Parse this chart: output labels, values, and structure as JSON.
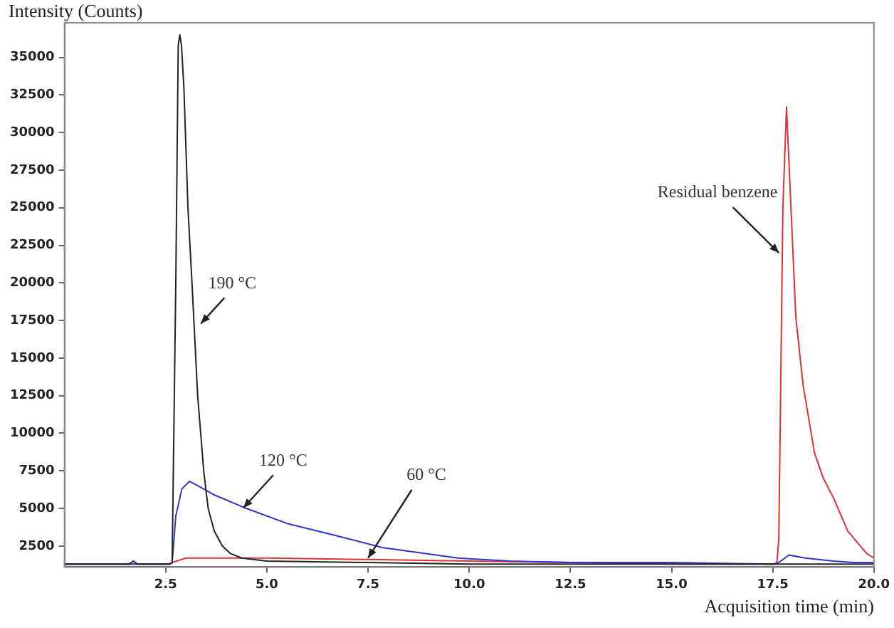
{
  "chart_data": {
    "type": "line",
    "xlabel": "Acquisition time (min)",
    "ylabel": "Intensity (Counts)",
    "xlim": [
      0,
      20
    ],
    "ylim": [
      1100,
      37300
    ],
    "xticks": [
      2.5,
      {
        "value": 5,
        "label": "5.0"
      },
      7.5,
      {
        "value": 10,
        "label": "10.0"
      },
      12.5,
      {
        "value": 15,
        "label": "15.0"
      },
      17.5,
      {
        "value": 20,
        "label": "20.0"
      }
    ],
    "yticks": [
      2500,
      5000,
      7500,
      10000,
      12500,
      15000,
      17500,
      20000,
      22500,
      25000,
      27500,
      30000,
      32500,
      35000
    ],
    "grid": false,
    "legend": false,
    "series": [
      {
        "color": "#222222",
        "x": [
          0,
          1.0,
          1.6,
          1.7,
          1.8,
          2.6,
          2.66,
          2.75,
          2.81,
          2.85,
          2.89,
          2.95,
          3.05,
          3.15,
          3.29,
          3.44,
          3.55,
          3.7,
          3.9,
          4.1,
          4.38,
          5.0,
          7.5,
          10,
          15,
          17.5,
          20
        ],
        "values": [
          1300,
          1300,
          1300,
          1500,
          1300,
          1300,
          1400,
          20000,
          35800,
          36500,
          35800,
          33000,
          25000,
          20000,
          12500,
          7500,
          5000,
          3500,
          2500,
          2000,
          1700,
          1500,
          1400,
          1300,
          1300,
          1300,
          1300
        ]
      },
      {
        "color": "#3333cc",
        "x": [
          0,
          2.6,
          2.66,
          2.75,
          2.9,
          3.09,
          3.3,
          3.7,
          4.49,
          5.5,
          6.69,
          7.85,
          9.72,
          11,
          12.5,
          15,
          17.5,
          17.65,
          17.9,
          18.3,
          19,
          19.5,
          20
        ],
        "values": [
          1300,
          1300,
          1400,
          4500,
          6300,
          6800,
          6500,
          5900,
          5000,
          4000,
          3200,
          2400,
          1700,
          1500,
          1400,
          1400,
          1300,
          1400,
          1900,
          1700,
          1500,
          1400,
          1400
        ]
      },
      {
        "color": "#dd3333",
        "x": [
          0,
          2.6,
          2.66,
          3.0,
          5,
          7.5,
          10,
          12.5,
          15,
          17.6,
          17.65,
          17.75,
          17.84,
          17.95,
          18.07,
          18.25,
          18.53,
          18.75,
          19.0,
          19.35,
          19.82,
          20
        ],
        "values": [
          1300,
          1300,
          1400,
          1700,
          1700,
          1600,
          1500,
          1400,
          1300,
          1300,
          3000,
          25000,
          31700,
          25000,
          17700,
          13200,
          8700,
          7000,
          5700,
          3500,
          2000,
          1700
        ]
      }
    ],
    "annotations": [
      {
        "text": "190 °C",
        "x": 3.37,
        "y": 17300
      },
      {
        "text": "120 °C",
        "x": 4.42,
        "y": 5040
      },
      {
        "text": "60 °C",
        "x": 7.5,
        "y": 1700
      },
      {
        "text": "Residual benzene",
        "x": 17.65,
        "y": 22000
      }
    ]
  }
}
